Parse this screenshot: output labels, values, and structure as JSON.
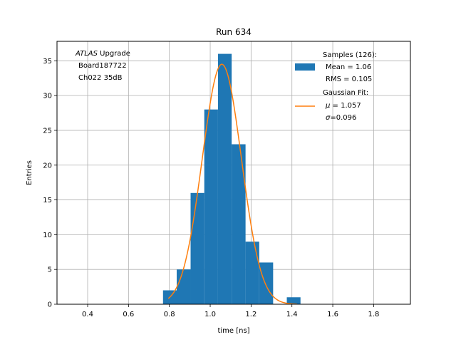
{
  "chart_data": {
    "type": "bar",
    "title": "Run 634",
    "xlabel": "time [ns]",
    "ylabel": "Entries",
    "xlim": [
      0.25,
      1.98
    ],
    "ylim": [
      0,
      37.8
    ],
    "xticks": [
      0.4,
      0.6,
      0.8,
      1.0,
      1.2,
      1.4,
      1.6,
      1.8
    ],
    "xtick_labels": [
      "0.4",
      "0.6",
      "0.8",
      "1.0",
      "1.2",
      "1.4",
      "1.6",
      "1.8"
    ],
    "yticks": [
      0,
      5,
      10,
      15,
      20,
      25,
      30,
      35
    ],
    "ytick_labels": [
      "0",
      "5",
      "10",
      "15",
      "20",
      "25",
      "30",
      "35"
    ],
    "grid": true,
    "legend_position": "top-right",
    "annotation": {
      "italic_word": "ATLAS",
      "rest_line1": " Upgrade",
      "line2": "Board187722",
      "line3": "Ch022 35dB"
    },
    "histogram": {
      "color": "#1f77b4",
      "bin_edges": [
        0.769,
        0.836,
        0.904,
        0.971,
        1.038,
        1.105,
        1.173,
        1.24,
        1.308,
        1.375,
        1.442
      ],
      "counts": [
        2,
        5,
        16,
        28,
        36,
        23,
        9,
        6,
        0,
        1
      ],
      "legend": {
        "line1": "Samples (126):",
        "line2": "Mean = 1.06",
        "line3": "RMS = 0.105"
      }
    },
    "fit": {
      "type": "gaussian",
      "color": "#ff7f0e",
      "mu": 1.057,
      "sigma": 0.096,
      "amplitude": 34.5,
      "x_range": [
        0.795,
        1.425
      ],
      "legend": {
        "line1": "Gaussian Fit:",
        "mu_symbol": "μ",
        "mu_text": " = 1.057",
        "sigma_symbol": "σ",
        "sigma_text": "=0.096"
      }
    }
  }
}
